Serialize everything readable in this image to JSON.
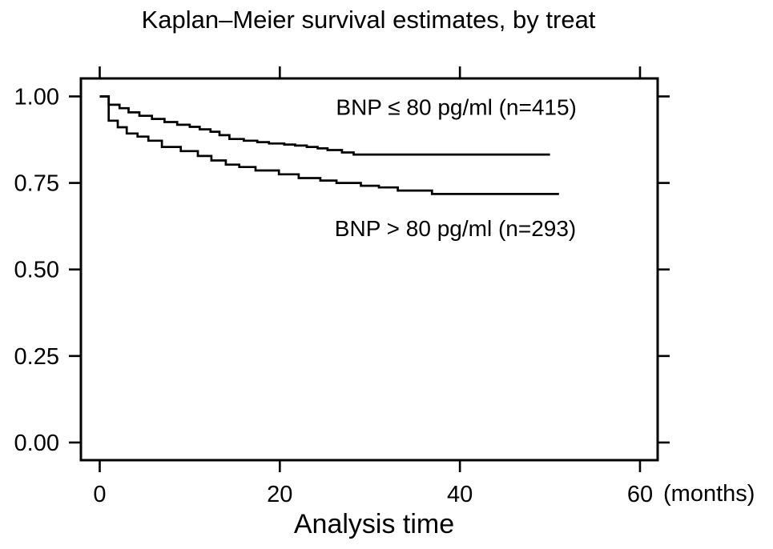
{
  "figure": {
    "background": "#ffffff",
    "text_color": "#000000"
  },
  "chart_data": {
    "type": "line",
    "subtype": "kaplan-meier-step",
    "title": "Kaplan–Meier survival estimates, by treat",
    "xlabel": "Analysis time",
    "x_unit_label": "(months)",
    "grid": false,
    "legend": "inline-annotations",
    "line_color": "#000000",
    "frame_color": "#000000",
    "xlim": [
      -2.09,
      61.96
    ],
    "ylim": [
      -0.051,
      1.052
    ],
    "x_ticks": [
      {
        "v": 0,
        "label": "0"
      },
      {
        "v": 20,
        "label": "20"
      },
      {
        "v": 40,
        "label": "40"
      },
      {
        "v": 60,
        "label": "60"
      }
    ],
    "y_ticks": [
      {
        "v": 0.0,
        "label": "0.00"
      },
      {
        "v": 0.25,
        "label": "0.25"
      },
      {
        "v": 0.5,
        "label": "0.50"
      },
      {
        "v": 0.75,
        "label": "0.75"
      },
      {
        "v": 1.0,
        "label": "1.00"
      }
    ],
    "series": [
      {
        "name": "bnp-le-80",
        "label": "BNP ≤ 80 pg/ml (n=415)",
        "n": 415,
        "label_anchor": {
          "month": 39.6,
          "survival": 0.97
        },
        "steps": [
          [
            0,
            1.0
          ],
          [
            1,
            0.976
          ],
          [
            2.2,
            0.966
          ],
          [
            3.2,
            0.954
          ],
          [
            4.4,
            0.944
          ],
          [
            5.8,
            0.935
          ],
          [
            7.2,
            0.926
          ],
          [
            8.6,
            0.918
          ],
          [
            10,
            0.912
          ],
          [
            11.1,
            0.905
          ],
          [
            12.3,
            0.898
          ],
          [
            13.3,
            0.888
          ],
          [
            14.4,
            0.877
          ],
          [
            16,
            0.872
          ],
          [
            17.5,
            0.868
          ],
          [
            18.8,
            0.864
          ],
          [
            20.5,
            0.861
          ],
          [
            21.7,
            0.858
          ],
          [
            23,
            0.854
          ],
          [
            24.2,
            0.85
          ],
          [
            25.3,
            0.845
          ],
          [
            26.9,
            0.838
          ],
          [
            28.2,
            0.832
          ],
          [
            50,
            0.832
          ]
        ]
      },
      {
        "name": "bnp-gt-80",
        "label": "BNP > 80 pg/ml (n=293)",
        "n": 293,
        "label_anchor": {
          "month": 39.5,
          "survival": 0.62
        },
        "steps": [
          [
            0,
            1.0
          ],
          [
            1,
            0.93
          ],
          [
            2,
            0.911
          ],
          [
            3,
            0.893
          ],
          [
            4.2,
            0.884
          ],
          [
            5.4,
            0.872
          ],
          [
            6.9,
            0.854
          ],
          [
            9,
            0.842
          ],
          [
            10.9,
            0.828
          ],
          [
            12.4,
            0.815
          ],
          [
            14,
            0.803
          ],
          [
            15.5,
            0.796
          ],
          [
            17.3,
            0.786
          ],
          [
            19.9,
            0.775
          ],
          [
            22.1,
            0.764
          ],
          [
            24.5,
            0.757
          ],
          [
            26.3,
            0.75
          ],
          [
            29,
            0.742
          ],
          [
            31,
            0.737
          ],
          [
            33.1,
            0.728
          ],
          [
            36.9,
            0.718
          ],
          [
            51,
            0.718
          ]
        ]
      }
    ]
  }
}
